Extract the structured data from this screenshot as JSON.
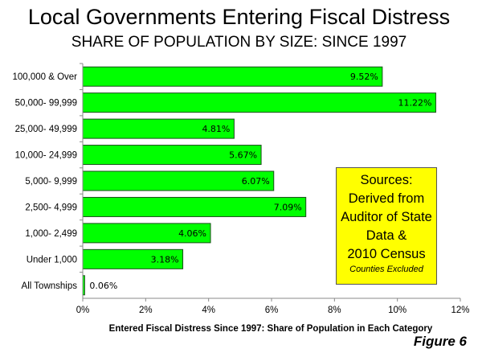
{
  "chart_data": {
    "type": "bar",
    "orientation": "horizontal",
    "title": "Local Governments Entering Fiscal Distress",
    "subtitle": "SHARE OF POPULATION BY SIZE: SINCE 1997",
    "xlabel": "Entered Fiscal Distress Since 1997: Share of Population in Each Category",
    "ylabel": "",
    "categories": [
      "100,000 & Over",
      "50,000- 99,999",
      "25,000- 49,999",
      "10,000- 24,999",
      "5,000- 9,999",
      "2,500- 4,999",
      "1,000- 2,499",
      "Under 1,000",
      "All Townships"
    ],
    "values": [
      9.52,
      11.22,
      4.81,
      5.67,
      6.07,
      7.09,
      4.06,
      3.18,
      0.06
    ],
    "data_labels": [
      "9.52%",
      "11.22%",
      "4.81%",
      "5.67%",
      "6.07%",
      "7.09%",
      "4.06%",
      "3.18%",
      "0.06%"
    ],
    "xlim": [
      0,
      12
    ],
    "x_ticks": [
      0,
      2,
      4,
      6,
      8,
      10,
      12
    ],
    "x_tick_labels": [
      "0%",
      "2%",
      "4%",
      "6%",
      "8%",
      "10%",
      "12%"
    ],
    "grid": false,
    "bar_color": "#00ff00",
    "bar_border_color": "#1a4d1a"
  },
  "sources_box": {
    "lines": [
      "Sources:",
      "Derived from",
      "Auditor of State",
      "Data &",
      "2010 Census"
    ],
    "note": "Counties Excluded",
    "background": "#ffff00"
  },
  "figure_label": "Figure 6"
}
